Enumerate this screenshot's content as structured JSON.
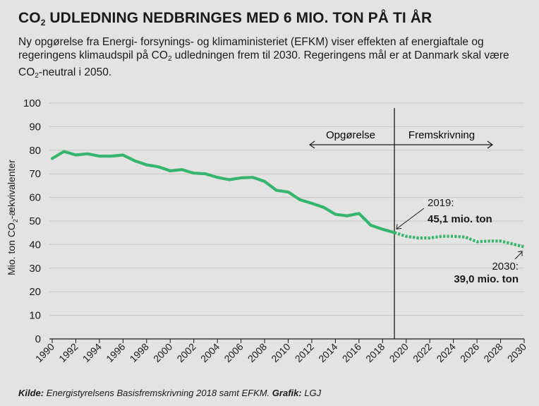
{
  "header": {
    "title_pre": "CO",
    "title_sub": "2",
    "title_post": " UDLEDNING NEDBRINGES MED 6 MIO. TON PÅ TI ÅR",
    "subtitle_1": "Ny opgørelse fra Energi- forsynings- og klimaministeriet (EFKM) viser effekten af energiaftale og regeringens klimaudspil på CO",
    "subtitle_sub1": "2",
    "subtitle_2": " udledningen frem til 2030. Regeringens mål er at Danmark skal være  CO",
    "subtitle_sub2": "2",
    "subtitle_3": "-neutral i 2050."
  },
  "chart_data": {
    "type": "line",
    "ylabel_pre": "Mio. ton CO",
    "ylabel_sub": "2",
    "ylabel_post": "-ækvivalenter",
    "ylim": [
      0,
      100
    ],
    "yticks": [
      0,
      10,
      20,
      30,
      40,
      50,
      60,
      70,
      80,
      90,
      100
    ],
    "xlim": [
      1990,
      2030
    ],
    "xticks": [
      1990,
      1992,
      1994,
      1996,
      1998,
      2000,
      2002,
      2004,
      2006,
      2008,
      2010,
      2012,
      2014,
      2016,
      2018,
      2020,
      2022,
      2024,
      2026,
      2028,
      2030
    ],
    "divider_year": 2019,
    "series": [
      {
        "name": "Opgørelse",
        "style": "solid",
        "x": [
          1990,
          1991,
          1992,
          1993,
          1994,
          1995,
          1996,
          1997,
          1998,
          1999,
          2000,
          2001,
          2002,
          2003,
          2004,
          2005,
          2006,
          2007,
          2008,
          2009,
          2010,
          2011,
          2012,
          2013,
          2014,
          2015,
          2016,
          2017,
          2018,
          2019
        ],
        "y": [
          76.5,
          79.5,
          78,
          78.5,
          77.5,
          77.5,
          78,
          75.5,
          73.8,
          73,
          71.3,
          71.8,
          70.3,
          70,
          68.5,
          67.5,
          68.3,
          68.5,
          66.8,
          63,
          62.3,
          59,
          57.5,
          55.8,
          52.8,
          52.2,
          53.2,
          48.2,
          46.5,
          45.1
        ]
      },
      {
        "name": "Fremskrivning",
        "style": "dotted",
        "x": [
          2019,
          2020,
          2021,
          2022,
          2023,
          2024,
          2025,
          2026,
          2027,
          2028,
          2029,
          2030
        ],
        "y": [
          45.1,
          43.5,
          42.8,
          42.8,
          43.5,
          43.5,
          43.2,
          41.2,
          41.5,
          41.5,
          40.3,
          39.0
        ]
      }
    ],
    "annotations": {
      "left_label": "Opgørelse",
      "right_label": "Fremskrivning",
      "a2019_year": "2019:",
      "a2019_value": "45,1 mio. ton",
      "a2030_year": "2030:",
      "a2030_value": "39,0 mio. ton"
    },
    "colors": {
      "line": "#35b56e",
      "grid": "#c4c4c4",
      "axis": "#1a1a1a"
    }
  },
  "source": {
    "kilde_label": "Kilde:",
    "kilde_text": " Energistyrelsens Basisfremskrivning 2018 samt EFKM. ",
    "grafik_label": "Grafik:",
    "grafik_text": " LGJ"
  }
}
